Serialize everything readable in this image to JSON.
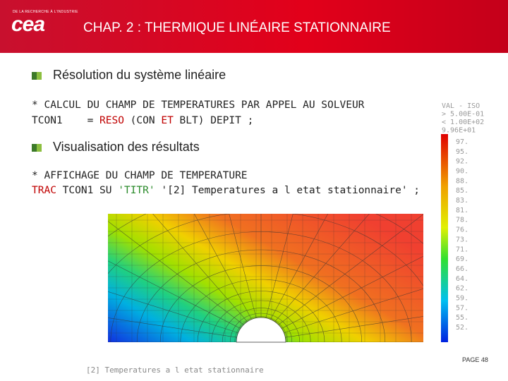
{
  "header": {
    "org": "DE LA RECHERCHE À L'INDUSTRIE",
    "logo": "cea",
    "title": "CHAP. 2 : THERMIQUE LINÉAIRE STATIONNAIRE"
  },
  "sections": [
    {
      "heading": "Résolution du système linéaire",
      "code": [
        [
          "* CALCUL DU CHAMP DE TEMPERATURES PAR APPEL AU SOLVEUR"
        ],
        [
          "TCON1    = ",
          "RESO",
          " (CON ",
          "ET",
          " BLT) DEPIT ;"
        ]
      ]
    },
    {
      "heading": "Visualisation des résultats",
      "code": [
        [
          "* AFFICHAGE DU CHAMP DE TEMPERATURE"
        ],
        [
          "TRAC",
          " TCON1 SU ",
          "'TITR'",
          " '[2] Temperatures a l etat stationnaire' ;"
        ]
      ]
    }
  ],
  "figure": {
    "legend_header": [
      "VAL - ISO",
      "> 5.00E-01",
      "< 1.00E+02",
      "9.96E+01"
    ],
    "levels": [
      "97.",
      "95.",
      "92.",
      "90.",
      "88.",
      "85.",
      "83.",
      "81.",
      "78.",
      "76.",
      "73.",
      "71.",
      "69.",
      "66.",
      "64.",
      "62.",
      "59.",
      "57.",
      "55.",
      "52."
    ],
    "caption": "[2] Temperatures a l etat stationnaire"
  },
  "footer": {
    "page": "PAGE 48"
  }
}
